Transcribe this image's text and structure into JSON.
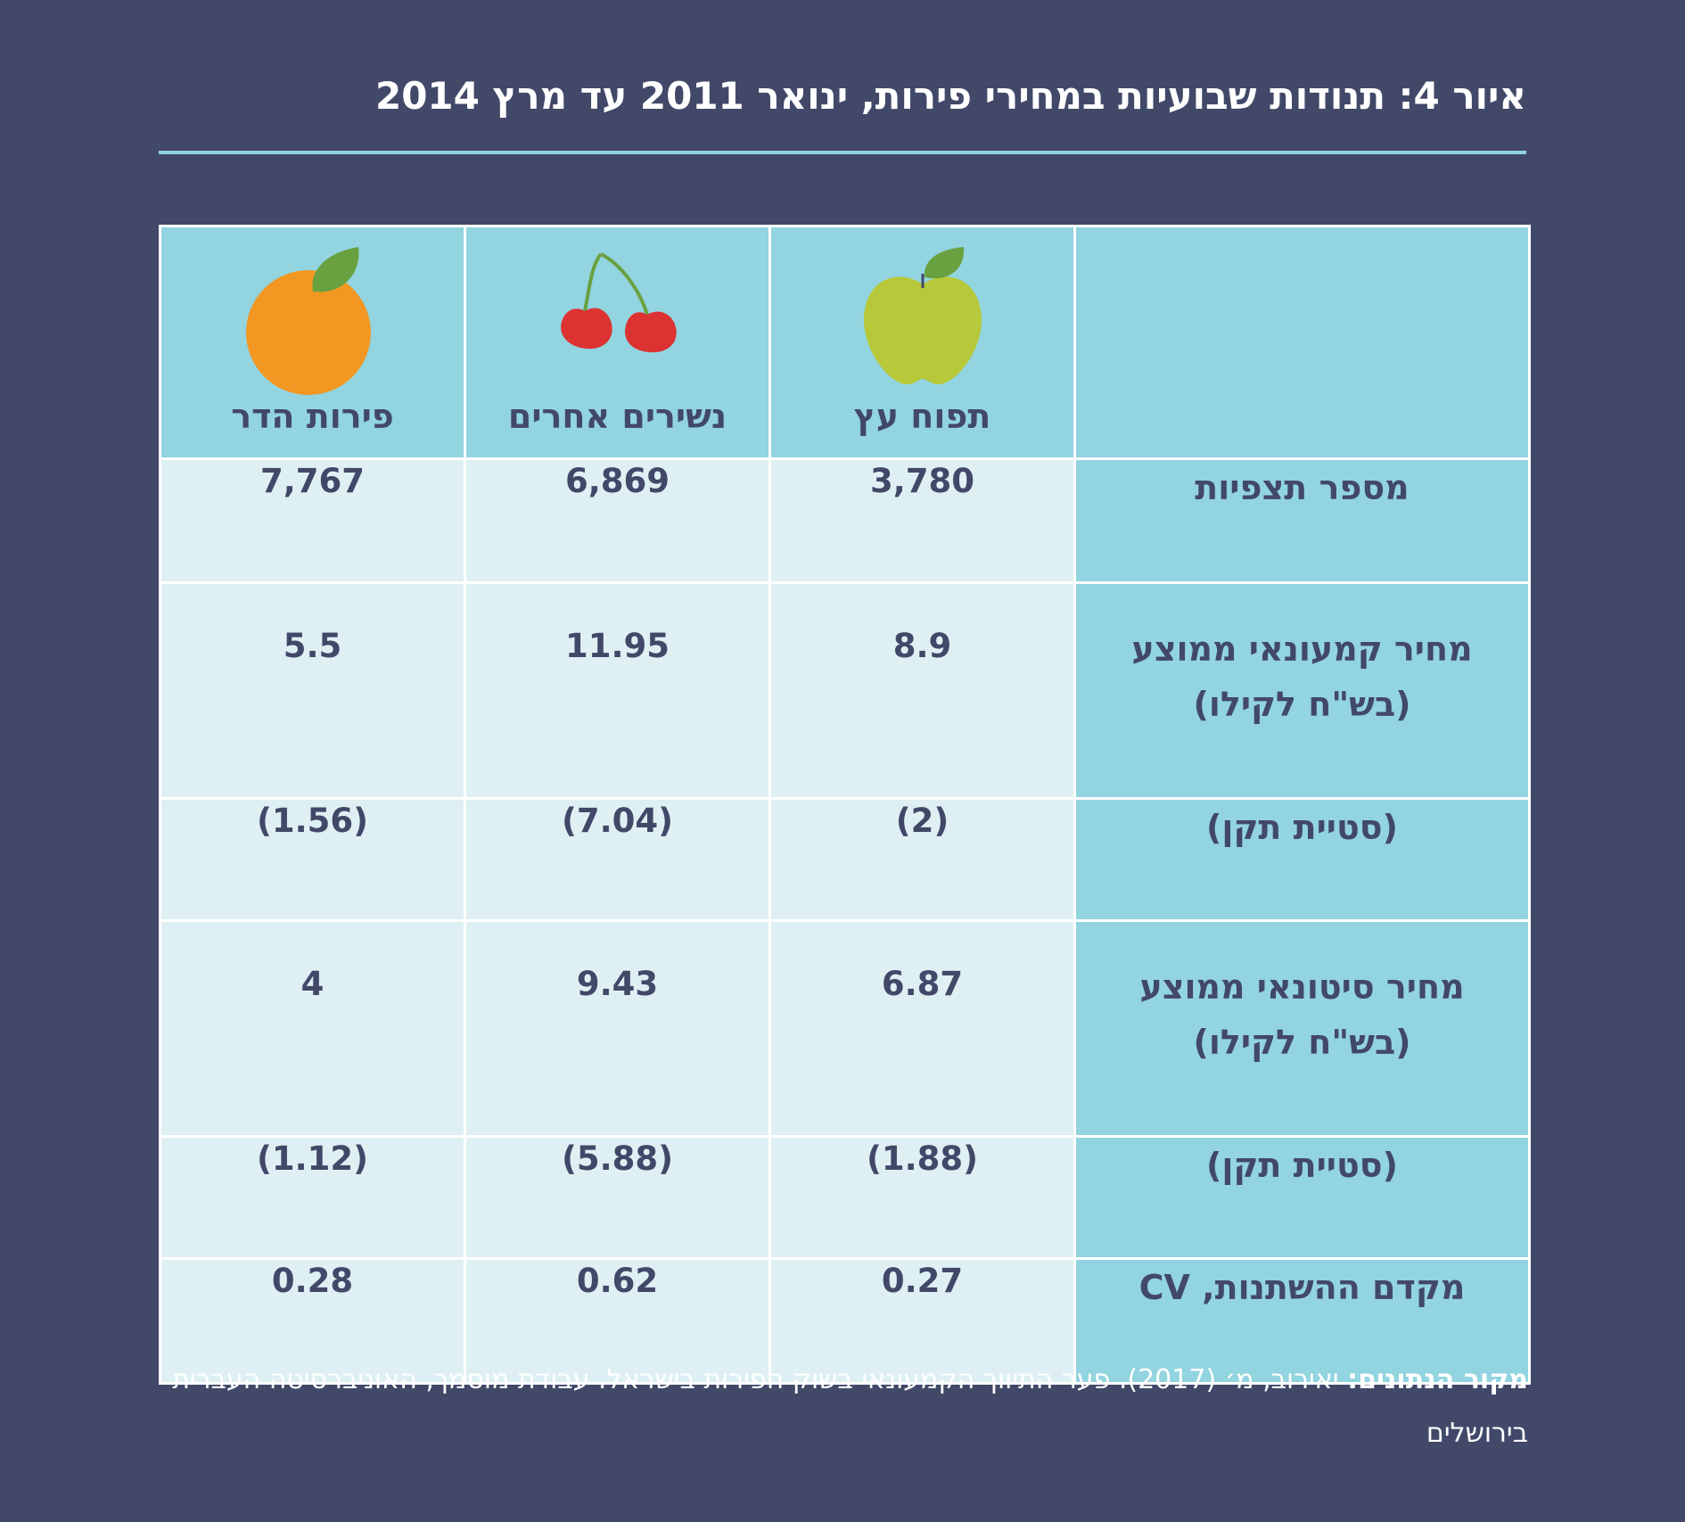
{
  "title": "איור 4: תנודות שבועיות במחירי פירות, ינואר 2011 עד מרץ 2014",
  "table": {
    "columns": [
      {
        "name": "פירות הדר",
        "icon": "orange-icon"
      },
      {
        "name": "נשירים אחרים",
        "icon": "cherries-icon"
      },
      {
        "name": "תפוח עץ",
        "icon": "apple-icon"
      }
    ],
    "rows": [
      {
        "label": [
          "מספר תצפיות"
        ],
        "values": [
          "7,767",
          "6,869",
          "3,780"
        ]
      },
      {
        "label": [
          "מחיר קמעונאי ממוצע",
          "(בש\"ח לקילו)"
        ],
        "values": [
          "5.5",
          "11.95",
          "8.9"
        ]
      },
      {
        "label": [
          "(סטיית תקן)"
        ],
        "values": [
          "(1.56)",
          "(7.04)",
          "(2)"
        ]
      },
      {
        "label": [
          "מחיר סיטונאי ממוצע",
          "(בש\"ח לקילו)"
        ],
        "values": [
          "4",
          "9.43",
          "6.87"
        ]
      },
      {
        "label": [
          "(סטיית תקן)"
        ],
        "values": [
          "(1.12)",
          "(5.88)",
          "(1.88)"
        ]
      },
      {
        "label": [
          "מקדם ההשתנות, CV"
        ],
        "values": [
          "0.28",
          "0.62",
          "0.27"
        ]
      }
    ]
  },
  "source": {
    "label": "מקור הנתונים:",
    "text": " יאירוב, מ׳ (2017). פער התיווך הקמעונאי בשוק הפירות בישראל. עבודת מוסמך, האוניברסיטה העברית בירושלים"
  },
  "colors": {
    "background": "#424868",
    "header_cell": "#92d4df",
    "value_cell": "#dff0f4",
    "text": "#424868",
    "rule": "#8fd3de"
  }
}
